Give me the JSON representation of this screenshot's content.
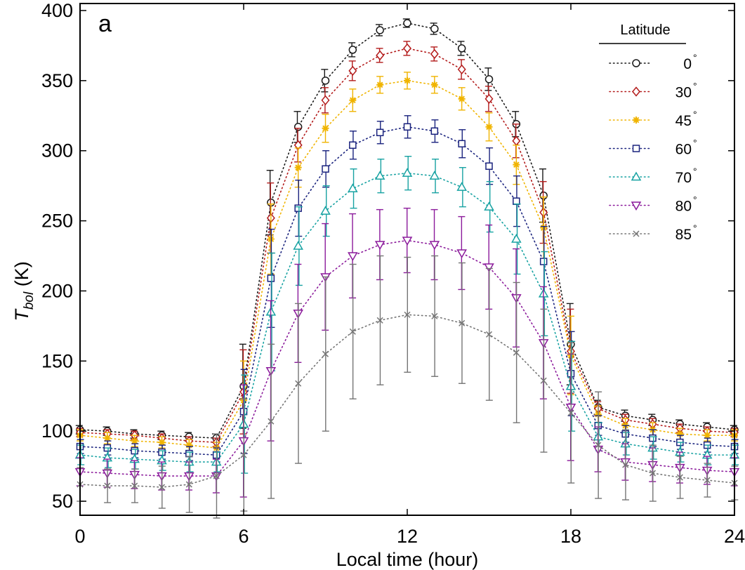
{
  "chart_data": {
    "type": "line",
    "panel_label": "a",
    "xlabel": "Local time (hour)",
    "ylabel_main": "T",
    "ylabel_sub": "bol",
    "ylabel_unit": " (K)",
    "xlim": [
      0,
      24
    ],
    "ylim": [
      40,
      405
    ],
    "xticks": [
      0,
      6,
      12,
      18,
      24
    ],
    "yticks": [
      50,
      100,
      150,
      200,
      250,
      300,
      350,
      400
    ],
    "legend_title": "Latitude",
    "legend_position": "top-right",
    "degree_symbol": "°",
    "x": [
      0,
      1,
      2,
      3,
      4,
      5,
      6,
      7,
      8,
      9,
      10,
      11,
      12,
      13,
      14,
      15,
      16,
      17,
      18,
      19,
      20,
      21,
      22,
      23,
      24
    ],
    "series": [
      {
        "name": "0",
        "color": "#1a1a1a",
        "marker": "circle",
        "values": [
          101,
          100,
          98,
          97,
          96,
          95,
          132,
          263,
          317,
          350,
          372,
          386,
          391,
          387,
          373,
          351,
          319,
          268,
          162,
          117,
          111,
          108,
          105,
          103,
          101
        ],
        "err": [
          3,
          3,
          3,
          3,
          3,
          3,
          30,
          23,
          11,
          8,
          5,
          4,
          3,
          4,
          5,
          8,
          9,
          19,
          29,
          5,
          4,
          4,
          3,
          3,
          3
        ]
      },
      {
        "name": "30",
        "color": "#b31b1b",
        "marker": "diamond",
        "values": [
          99,
          98,
          97,
          95,
          93,
          92,
          128,
          252,
          304,
          336,
          357,
          368,
          373,
          369,
          358,
          337,
          307,
          256,
          157,
          116,
          108,
          105,
          102,
          100,
          99
        ],
        "err": [
          3,
          3,
          3,
          3,
          3,
          3,
          30,
          25,
          12,
          9,
          7,
          5,
          5,
          5,
          7,
          9,
          12,
          22,
          30,
          5,
          4,
          4,
          3,
          3,
          3
        ]
      },
      {
        "name": "45",
        "color": "#f0b400",
        "marker": "star",
        "values": [
          97,
          95,
          93,
          92,
          90,
          88,
          122,
          237,
          288,
          316,
          336,
          347,
          350,
          347,
          337,
          317,
          290,
          245,
          154,
          112,
          104,
          101,
          98,
          97,
          97
        ],
        "err": [
          4,
          4,
          4,
          4,
          4,
          4,
          28,
          25,
          14,
          10,
          8,
          6,
          6,
          6,
          8,
          10,
          14,
          22,
          28,
          6,
          5,
          5,
          4,
          4,
          4
        ]
      },
      {
        "name": "60",
        "color": "#1a237e",
        "marker": "square",
        "values": [
          89,
          88,
          86,
          85,
          84,
          83,
          114,
          209,
          259,
          287,
          304,
          313,
          317,
          314,
          305,
          289,
          264,
          221,
          141,
          104,
          98,
          95,
          92,
          90,
          89
        ],
        "err": [
          5,
          5,
          5,
          5,
          5,
          5,
          30,
          35,
          20,
          13,
          10,
          8,
          8,
          8,
          10,
          13,
          18,
          25,
          30,
          7,
          6,
          6,
          5,
          5,
          5
        ]
      },
      {
        "name": "70",
        "color": "#17a2a2",
        "marker": "triangle-up",
        "values": [
          83,
          81,
          80,
          79,
          78,
          78,
          105,
          185,
          232,
          257,
          273,
          282,
          284,
          282,
          274,
          260,
          237,
          198,
          132,
          96,
          91,
          88,
          85,
          83,
          83
        ],
        "err": [
          7,
          7,
          7,
          7,
          7,
          7,
          35,
          42,
          28,
          18,
          14,
          12,
          12,
          12,
          14,
          18,
          25,
          30,
          32,
          10,
          8,
          8,
          7,
          7,
          7
        ]
      },
      {
        "name": "80",
        "color": "#8b1a9b",
        "marker": "triangle-down",
        "values": [
          71,
          70,
          69,
          68,
          68,
          68,
          93,
          143,
          184,
          210,
          225,
          233,
          236,
          233,
          227,
          217,
          195,
          163,
          117,
          87,
          78,
          76,
          74,
          72,
          71
        ],
        "err": [
          10,
          10,
          10,
          10,
          10,
          12,
          40,
          50,
          35,
          38,
          30,
          25,
          23,
          25,
          26,
          30,
          35,
          40,
          38,
          16,
          13,
          12,
          11,
          10,
          10
        ]
      },
      {
        "name": "85",
        "color": "#757575",
        "marker": "x",
        "values": [
          62,
          61,
          61,
          60,
          62,
          68,
          83,
          107,
          134,
          155,
          171,
          179,
          183,
          182,
          177,
          169,
          156,
          136,
          113,
          90,
          76,
          70,
          67,
          65,
          63
        ],
        "err": [
          12,
          12,
          12,
          15,
          20,
          30,
          40,
          55,
          57,
          55,
          48,
          46,
          41,
          43,
          43,
          47,
          50,
          51,
          50,
          38,
          25,
          20,
          15,
          12,
          12
        ]
      }
    ]
  }
}
